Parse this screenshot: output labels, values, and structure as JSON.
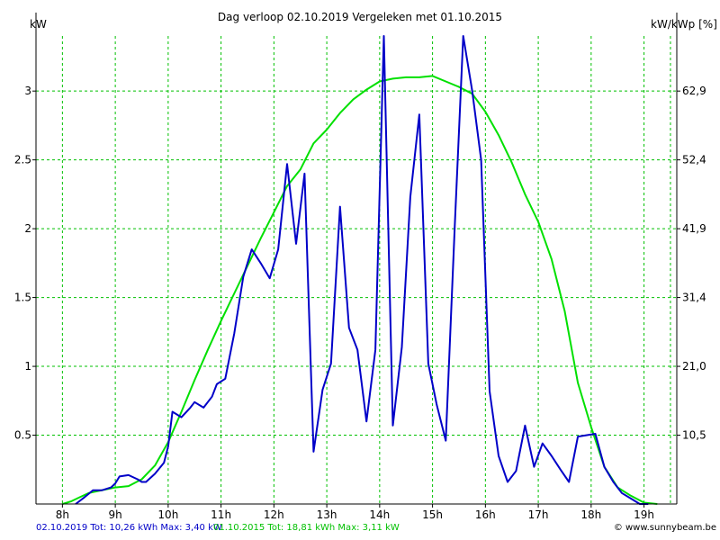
{
  "chart_data": {
    "type": "line",
    "title": "Dag  verloop 02.10.2019   Vergeleken met 01.10.2015",
    "y_left_label": "kW",
    "y_right_label": "kW/kWp [%]",
    "x_ticks": [
      "8h",
      "9h",
      "10h",
      "11h",
      "12h",
      "13h",
      "14h",
      "15h",
      "16h",
      "17h",
      "18h",
      "19h"
    ],
    "x_range": [
      7.5,
      19.62
    ],
    "y_ticks": [
      "0.5",
      "1",
      "1.5",
      "2",
      "2.5",
      "3"
    ],
    "y_ticks_right": [
      "10,5",
      "21,0",
      "31,4",
      "41,9",
      "52,4",
      "62,9"
    ],
    "y_range": [
      0,
      3.4
    ],
    "grid": true,
    "colors": {
      "series_2019": "#0000c8",
      "series_2015": "#00e000",
      "grid": "#00c000",
      "axis": "#000000"
    },
    "series": [
      {
        "name": "02.10.2019",
        "points": [
          [
            8.25,
            0.0
          ],
          [
            8.42,
            0.05
          ],
          [
            8.58,
            0.1
          ],
          [
            8.75,
            0.1
          ],
          [
            8.92,
            0.12
          ],
          [
            9.0,
            0.15
          ],
          [
            9.08,
            0.2
          ],
          [
            9.25,
            0.21
          ],
          [
            9.42,
            0.18
          ],
          [
            9.5,
            0.16
          ],
          [
            9.58,
            0.16
          ],
          [
            9.75,
            0.22
          ],
          [
            9.92,
            0.3
          ],
          [
            10.0,
            0.42
          ],
          [
            10.08,
            0.67
          ],
          [
            10.25,
            0.63
          ],
          [
            10.42,
            0.7
          ],
          [
            10.5,
            0.74
          ],
          [
            10.67,
            0.7
          ],
          [
            10.83,
            0.78
          ],
          [
            10.92,
            0.87
          ],
          [
            11.08,
            0.91
          ],
          [
            11.25,
            1.24
          ],
          [
            11.42,
            1.65
          ],
          [
            11.58,
            1.85
          ],
          [
            11.75,
            1.75
          ],
          [
            11.92,
            1.64
          ],
          [
            12.08,
            1.85
          ],
          [
            12.25,
            2.47
          ],
          [
            12.42,
            1.89
          ],
          [
            12.58,
            2.4
          ],
          [
            12.75,
            0.38
          ],
          [
            12.92,
            0.83
          ],
          [
            13.08,
            1.02
          ],
          [
            13.25,
            2.16
          ],
          [
            13.42,
            1.28
          ],
          [
            13.58,
            1.12
          ],
          [
            13.75,
            0.6
          ],
          [
            13.92,
            1.12
          ],
          [
            14.08,
            3.4
          ],
          [
            14.25,
            0.57
          ],
          [
            14.42,
            1.14
          ],
          [
            14.58,
            2.23
          ],
          [
            14.75,
            2.83
          ],
          [
            14.92,
            1.02
          ],
          [
            15.08,
            0.72
          ],
          [
            15.25,
            0.46
          ],
          [
            15.42,
            2.02
          ],
          [
            15.58,
            3.4
          ],
          [
            15.75,
            3.0
          ],
          [
            15.92,
            2.5
          ],
          [
            16.08,
            0.82
          ],
          [
            16.25,
            0.35
          ],
          [
            16.42,
            0.16
          ],
          [
            16.58,
            0.24
          ],
          [
            16.75,
            0.57
          ],
          [
            16.92,
            0.27
          ],
          [
            17.08,
            0.44
          ],
          [
            17.25,
            0.35
          ],
          [
            17.42,
            0.25
          ],
          [
            17.58,
            0.16
          ],
          [
            17.75,
            0.49
          ],
          [
            18.08,
            0.51
          ],
          [
            18.25,
            0.27
          ],
          [
            18.42,
            0.16
          ],
          [
            18.58,
            0.08
          ],
          [
            18.75,
            0.04
          ],
          [
            18.92,
            0.0
          ],
          [
            19.08,
            0.0
          ]
        ]
      },
      {
        "name": "01.10.2015",
        "points": [
          [
            8.0,
            0.0
          ],
          [
            8.17,
            0.02
          ],
          [
            8.33,
            0.05
          ],
          [
            8.5,
            0.08
          ],
          [
            8.75,
            0.1
          ],
          [
            9.0,
            0.12
          ],
          [
            9.25,
            0.13
          ],
          [
            9.5,
            0.18
          ],
          [
            9.75,
            0.28
          ],
          [
            10.0,
            0.45
          ],
          [
            10.25,
            0.67
          ],
          [
            10.5,
            0.9
          ],
          [
            10.75,
            1.12
          ],
          [
            11.0,
            1.33
          ],
          [
            11.25,
            1.53
          ],
          [
            11.5,
            1.73
          ],
          [
            11.75,
            1.93
          ],
          [
            12.0,
            2.12
          ],
          [
            12.25,
            2.31
          ],
          [
            12.5,
            2.43
          ],
          [
            12.75,
            2.62
          ],
          [
            13.0,
            2.72
          ],
          [
            13.25,
            2.84
          ],
          [
            13.5,
            2.94
          ],
          [
            13.75,
            3.01
          ],
          [
            14.0,
            3.07
          ],
          [
            14.25,
            3.09
          ],
          [
            14.5,
            3.1
          ],
          [
            14.75,
            3.1
          ],
          [
            15.0,
            3.11
          ],
          [
            15.25,
            3.07
          ],
          [
            15.5,
            3.03
          ],
          [
            15.75,
            2.98
          ],
          [
            16.0,
            2.85
          ],
          [
            16.25,
            2.68
          ],
          [
            16.5,
            2.48
          ],
          [
            16.75,
            2.25
          ],
          [
            17.0,
            2.05
          ],
          [
            17.25,
            1.78
          ],
          [
            17.5,
            1.4
          ],
          [
            17.75,
            0.88
          ],
          [
            18.0,
            0.56
          ],
          [
            18.25,
            0.27
          ],
          [
            18.5,
            0.12
          ],
          [
            18.75,
            0.06
          ],
          [
            19.0,
            0.01
          ],
          [
            19.25,
            0.0
          ]
        ]
      }
    ],
    "legend": [
      {
        "text": "02.10.2019 Tot: 10,26 kWh Max: 3,40 kW",
        "color": "#0000c8"
      },
      {
        "text": "01.10.2015 Tot: 18,81 kWh Max: 3,11 kW",
        "color": "#00c000"
      }
    ]
  },
  "footer": {
    "legend_2019": "02.10.2019 Tot: 10,26 kWh Max: 3,40 kW",
    "legend_2015": "01.10.2015 Tot: 18,81 kWh Max: 3,11 kW",
    "copyright": "© www.sunnybeam.be"
  },
  "icons": {
    "copyright": "copyright-icon"
  }
}
